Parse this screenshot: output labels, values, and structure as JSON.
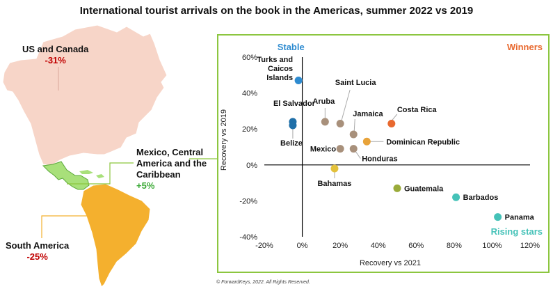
{
  "page": {
    "credit": "© ForwardKeys, 2022. All Rights Reserved."
  },
  "regions": [
    {
      "name": "US and Canada",
      "change": "-31%",
      "change_color": "#c00000"
    },
    {
      "name": "Mexico, Central America and the Caribbean",
      "change": "+5%",
      "change_color": "#3aa935"
    },
    {
      "name": "South America",
      "change": "-25%",
      "change_color": "#c00000"
    }
  ],
  "colors": {
    "na_fill": "#f7d5c8",
    "central_fill": "#a8e07a",
    "south_fill": "#f4b02e",
    "panel_border": "#8cc63f",
    "connector": "#8cc63f",
    "south_connector": "#f4b02e"
  },
  "chart_data": {
    "type": "scatter",
    "title": "International tourist arrivals on the book in the Americas, summer 2022 vs 2019",
    "xlabel": "Recovery vs 2021",
    "ylabel": "Recovery vs 2019",
    "xlim": [
      -20,
      120
    ],
    "ylim": [
      -40,
      60
    ],
    "xticks": [
      -20,
      0,
      20,
      40,
      60,
      80,
      100,
      120
    ],
    "yticks": [
      -40,
      -20,
      0,
      20,
      40,
      60
    ],
    "tick_format": "percent",
    "grid": false,
    "quadrant_labels": [
      {
        "text": "Stable",
        "position": "top-left",
        "color": "#2e8bd0"
      },
      {
        "text": "Winners",
        "position": "top-right",
        "color": "#e8692f"
      },
      {
        "text": "Rising stars",
        "position": "bottom-right",
        "color": "#45c2b8"
      }
    ],
    "points": [
      {
        "label": "Turks and Caicos Islands",
        "x": -2,
        "y": 47,
        "color": "#2e8bd0"
      },
      {
        "label": "El Salvador",
        "x": -5,
        "y": 24,
        "color": "#1f6fa8"
      },
      {
        "label": "Belize",
        "x": -5,
        "y": 22,
        "color": "#1f6fa8"
      },
      {
        "label": "Aruba",
        "x": 12,
        "y": 24,
        "color": "#a8907b"
      },
      {
        "label": "Saint Lucia",
        "x": 20,
        "y": 23,
        "color": "#a8907b"
      },
      {
        "label": "Jamaica",
        "x": 27,
        "y": 17,
        "color": "#a8907b"
      },
      {
        "label": "Costa Rica",
        "x": 47,
        "y": 23,
        "color": "#e8692f"
      },
      {
        "label": "Dominican Republic",
        "x": 34,
        "y": 13,
        "color": "#e8a33a"
      },
      {
        "label": "Mexico",
        "x": 20,
        "y": 9,
        "color": "#a8907b"
      },
      {
        "label": "Honduras",
        "x": 27,
        "y": 9,
        "color": "#a8907b"
      },
      {
        "label": "Bahamas",
        "x": 17,
        "y": -2,
        "color": "#e3c13b"
      },
      {
        "label": "Guatemala",
        "x": 50,
        "y": -13,
        "color": "#9aab3a"
      },
      {
        "label": "Barbados",
        "x": 81,
        "y": -18,
        "color": "#45c2b8"
      },
      {
        "label": "Panama",
        "x": 103,
        "y": -29,
        "color": "#45c2b8"
      }
    ]
  }
}
